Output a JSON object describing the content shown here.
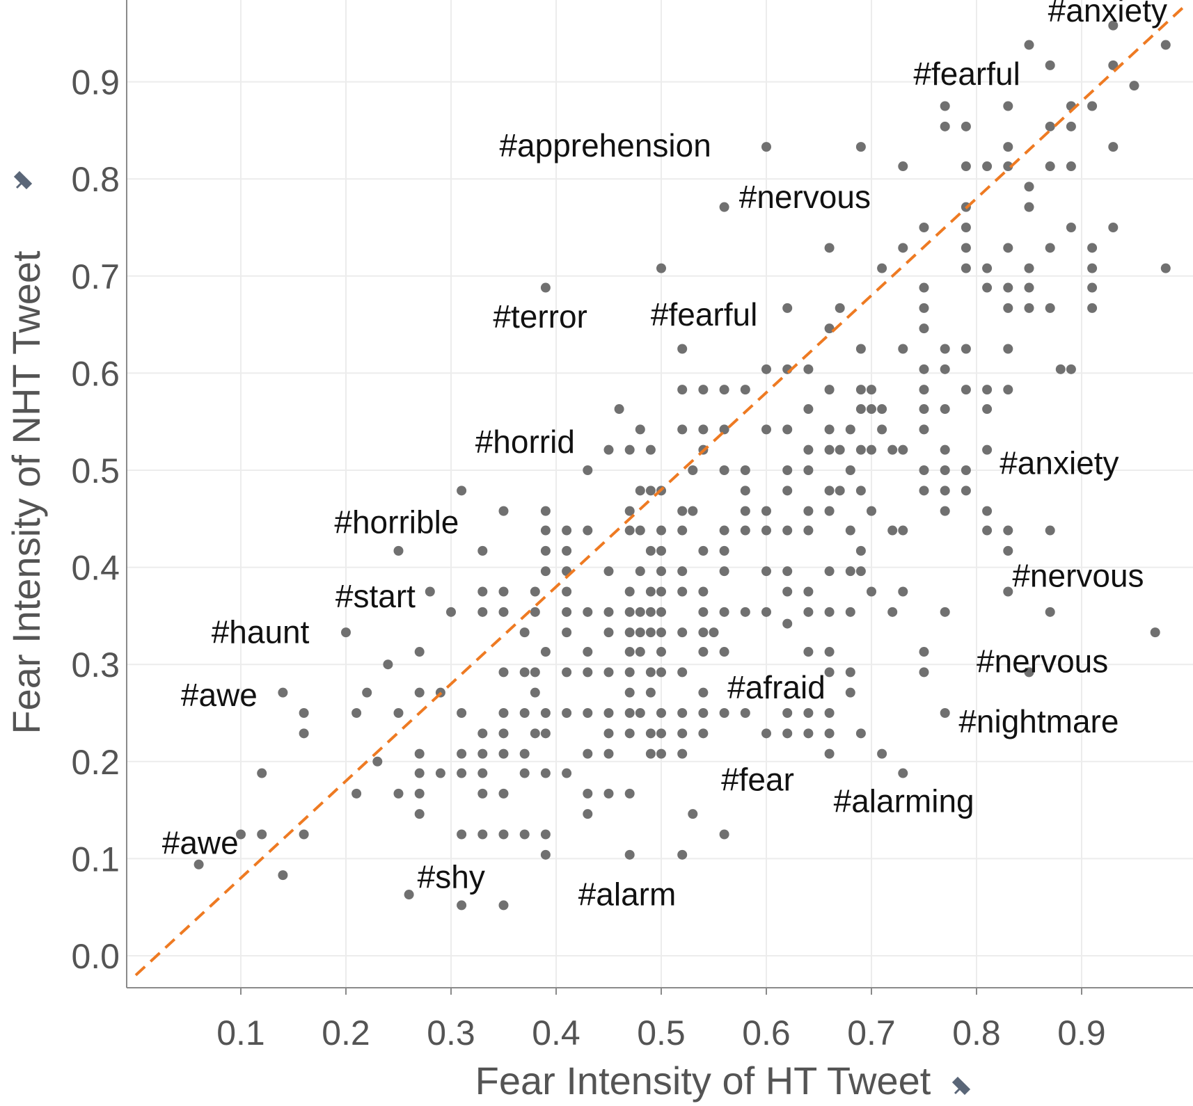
{
  "chart_data": {
    "type": "scatter",
    "xlabel": "Fear Intensity of HT Tweet",
    "ylabel": "Fear Intensity of NHT Tweet",
    "xlim": [
      0.0,
      1.0
    ],
    "ylim": [
      -0.02,
      1.0
    ],
    "x_ticks": [
      "0.1",
      "0.2",
      "0.3",
      "0.4",
      "0.5",
      "0.6",
      "0.7",
      "0.8",
      "0.9"
    ],
    "y_ticks": [
      "0.0",
      "0.1",
      "0.2",
      "0.3",
      "0.4",
      "0.5",
      "0.6",
      "0.7",
      "0.8",
      "0.9",
      "1.0"
    ],
    "grid": true,
    "reference_line": {
      "type": "diagonal",
      "x": [
        0.0,
        1.0
      ],
      "y": [
        -0.02,
        0.98
      ],
      "color": "#ee7a22",
      "style": "dashed"
    },
    "colors": {
      "point": "#707070",
      "diagonal": "#ee7a22",
      "grid": "#ececec",
      "axis": "#8a8a8a",
      "text": "#545454",
      "annotation": "#111111",
      "pin": "#5a6678"
    },
    "icons": {
      "axis_title_marker": "pin-icon"
    },
    "points": [
      [
        0.06,
        0.094
      ],
      [
        0.1,
        0.125
      ],
      [
        0.12,
        0.125
      ],
      [
        0.12,
        0.188
      ],
      [
        0.14,
        0.271
      ],
      [
        0.14,
        0.083
      ],
      [
        0.16,
        0.25
      ],
      [
        0.16,
        0.229
      ],
      [
        0.16,
        0.125
      ],
      [
        0.2,
        0.333
      ],
      [
        0.21,
        0.25
      ],
      [
        0.21,
        0.167
      ],
      [
        0.22,
        0.271
      ],
      [
        0.23,
        0.2
      ],
      [
        0.25,
        0.417
      ],
      [
        0.24,
        0.3
      ],
      [
        0.25,
        0.25
      ],
      [
        0.25,
        0.167
      ],
      [
        0.26,
        0.063
      ],
      [
        0.27,
        0.313
      ],
      [
        0.27,
        0.271
      ],
      [
        0.27,
        0.208
      ],
      [
        0.27,
        0.188
      ],
      [
        0.27,
        0.146
      ],
      [
        0.27,
        0.167
      ],
      [
        0.28,
        0.375
      ],
      [
        0.29,
        0.271
      ],
      [
        0.29,
        0.188
      ],
      [
        0.3,
        0.354
      ],
      [
        0.31,
        0.479
      ],
      [
        0.31,
        0.25
      ],
      [
        0.31,
        0.208
      ],
      [
        0.31,
        0.188
      ],
      [
        0.31,
        0.125
      ],
      [
        0.31,
        0.052
      ],
      [
        0.33,
        0.417
      ],
      [
        0.33,
        0.375
      ],
      [
        0.33,
        0.354
      ],
      [
        0.33,
        0.229
      ],
      [
        0.33,
        0.208
      ],
      [
        0.33,
        0.188
      ],
      [
        0.33,
        0.167
      ],
      [
        0.33,
        0.125
      ],
      [
        0.35,
        0.458
      ],
      [
        0.35,
        0.375
      ],
      [
        0.35,
        0.354
      ],
      [
        0.35,
        0.292
      ],
      [
        0.35,
        0.25
      ],
      [
        0.35,
        0.229
      ],
      [
        0.35,
        0.208
      ],
      [
        0.35,
        0.167
      ],
      [
        0.35,
        0.125
      ],
      [
        0.35,
        0.052
      ],
      [
        0.37,
        0.333
      ],
      [
        0.37,
        0.292
      ],
      [
        0.37,
        0.25
      ],
      [
        0.37,
        0.208
      ],
      [
        0.37,
        0.188
      ],
      [
        0.37,
        0.125
      ],
      [
        0.38,
        0.375
      ],
      [
        0.38,
        0.354
      ],
      [
        0.38,
        0.292
      ],
      [
        0.38,
        0.271
      ],
      [
        0.38,
        0.229
      ],
      [
        0.39,
        0.458
      ],
      [
        0.39,
        0.438
      ],
      [
        0.39,
        0.417
      ],
      [
        0.39,
        0.396
      ],
      [
        0.39,
        0.313
      ],
      [
        0.39,
        0.25
      ],
      [
        0.39,
        0.229
      ],
      [
        0.39,
        0.188
      ],
      [
        0.39,
        0.125
      ],
      [
        0.39,
        0.104
      ],
      [
        0.39,
        0.688
      ],
      [
        0.41,
        0.438
      ],
      [
        0.41,
        0.417
      ],
      [
        0.41,
        0.396
      ],
      [
        0.41,
        0.375
      ],
      [
        0.41,
        0.354
      ],
      [
        0.41,
        0.333
      ],
      [
        0.41,
        0.292
      ],
      [
        0.41,
        0.25
      ],
      [
        0.41,
        0.188
      ],
      [
        0.43,
        0.5
      ],
      [
        0.43,
        0.438
      ],
      [
        0.43,
        0.354
      ],
      [
        0.43,
        0.313
      ],
      [
        0.43,
        0.292
      ],
      [
        0.43,
        0.25
      ],
      [
        0.43,
        0.208
      ],
      [
        0.43,
        0.167
      ],
      [
        0.43,
        0.146
      ],
      [
        0.45,
        0.521
      ],
      [
        0.45,
        0.396
      ],
      [
        0.45,
        0.354
      ],
      [
        0.45,
        0.333
      ],
      [
        0.45,
        0.292
      ],
      [
        0.45,
        0.25
      ],
      [
        0.45,
        0.229
      ],
      [
        0.45,
        0.208
      ],
      [
        0.45,
        0.167
      ],
      [
        0.46,
        0.563
      ],
      [
        0.47,
        0.521
      ],
      [
        0.47,
        0.458
      ],
      [
        0.47,
        0.438
      ],
      [
        0.47,
        0.375
      ],
      [
        0.47,
        0.354
      ],
      [
        0.47,
        0.333
      ],
      [
        0.47,
        0.313
      ],
      [
        0.47,
        0.292
      ],
      [
        0.47,
        0.271
      ],
      [
        0.47,
        0.25
      ],
      [
        0.47,
        0.229
      ],
      [
        0.47,
        0.167
      ],
      [
        0.47,
        0.104
      ],
      [
        0.48,
        0.542
      ],
      [
        0.48,
        0.479
      ],
      [
        0.48,
        0.438
      ],
      [
        0.48,
        0.396
      ],
      [
        0.48,
        0.354
      ],
      [
        0.48,
        0.333
      ],
      [
        0.48,
        0.313
      ],
      [
        0.48,
        0.25
      ],
      [
        0.49,
        0.521
      ],
      [
        0.49,
        0.479
      ],
      [
        0.49,
        0.417
      ],
      [
        0.49,
        0.375
      ],
      [
        0.49,
        0.354
      ],
      [
        0.49,
        0.333
      ],
      [
        0.49,
        0.292
      ],
      [
        0.49,
        0.271
      ],
      [
        0.49,
        0.229
      ],
      [
        0.49,
        0.208
      ],
      [
        0.5,
        0.708
      ],
      [
        0.5,
        0.479
      ],
      [
        0.5,
        0.438
      ],
      [
        0.5,
        0.417
      ],
      [
        0.5,
        0.396
      ],
      [
        0.5,
        0.375
      ],
      [
        0.5,
        0.354
      ],
      [
        0.5,
        0.333
      ],
      [
        0.5,
        0.313
      ],
      [
        0.5,
        0.292
      ],
      [
        0.5,
        0.25
      ],
      [
        0.5,
        0.229
      ],
      [
        0.5,
        0.208
      ],
      [
        0.52,
        0.625
      ],
      [
        0.52,
        0.583
      ],
      [
        0.52,
        0.542
      ],
      [
        0.52,
        0.458
      ],
      [
        0.52,
        0.438
      ],
      [
        0.52,
        0.396
      ],
      [
        0.52,
        0.375
      ],
      [
        0.52,
        0.333
      ],
      [
        0.52,
        0.292
      ],
      [
        0.52,
        0.25
      ],
      [
        0.52,
        0.229
      ],
      [
        0.52,
        0.208
      ],
      [
        0.52,
        0.104
      ],
      [
        0.53,
        0.5
      ],
      [
        0.53,
        0.458
      ],
      [
        0.53,
        0.146
      ],
      [
        0.54,
        0.583
      ],
      [
        0.54,
        0.542
      ],
      [
        0.54,
        0.521
      ],
      [
        0.54,
        0.417
      ],
      [
        0.54,
        0.375
      ],
      [
        0.54,
        0.354
      ],
      [
        0.54,
        0.333
      ],
      [
        0.54,
        0.313
      ],
      [
        0.54,
        0.271
      ],
      [
        0.54,
        0.25
      ],
      [
        0.54,
        0.229
      ],
      [
        0.55,
        0.333
      ],
      [
        0.56,
        0.771
      ],
      [
        0.56,
        0.583
      ],
      [
        0.56,
        0.542
      ],
      [
        0.56,
        0.5
      ],
      [
        0.56,
        0.438
      ],
      [
        0.56,
        0.417
      ],
      [
        0.56,
        0.396
      ],
      [
        0.56,
        0.354
      ],
      [
        0.56,
        0.313
      ],
      [
        0.56,
        0.25
      ],
      [
        0.56,
        0.125
      ],
      [
        0.58,
        0.583
      ],
      [
        0.58,
        0.5
      ],
      [
        0.58,
        0.479
      ],
      [
        0.58,
        0.458
      ],
      [
        0.58,
        0.438
      ],
      [
        0.58,
        0.354
      ],
      [
        0.58,
        0.25
      ],
      [
        0.6,
        0.833
      ],
      [
        0.6,
        0.604
      ],
      [
        0.6,
        0.542
      ],
      [
        0.6,
        0.458
      ],
      [
        0.6,
        0.438
      ],
      [
        0.6,
        0.396
      ],
      [
        0.6,
        0.354
      ],
      [
        0.6,
        0.229
      ],
      [
        0.62,
        0.667
      ],
      [
        0.62,
        0.604
      ],
      [
        0.62,
        0.542
      ],
      [
        0.62,
        0.5
      ],
      [
        0.62,
        0.479
      ],
      [
        0.62,
        0.438
      ],
      [
        0.62,
        0.396
      ],
      [
        0.62,
        0.375
      ],
      [
        0.62,
        0.342
      ],
      [
        0.62,
        0.25
      ],
      [
        0.62,
        0.229
      ],
      [
        0.64,
        0.604
      ],
      [
        0.64,
        0.563
      ],
      [
        0.64,
        0.521
      ],
      [
        0.64,
        0.5
      ],
      [
        0.64,
        0.458
      ],
      [
        0.64,
        0.438
      ],
      [
        0.64,
        0.375
      ],
      [
        0.64,
        0.354
      ],
      [
        0.64,
        0.313
      ],
      [
        0.64,
        0.25
      ],
      [
        0.64,
        0.229
      ],
      [
        0.66,
        0.729
      ],
      [
        0.66,
        0.646
      ],
      [
        0.66,
        0.583
      ],
      [
        0.66,
        0.542
      ],
      [
        0.66,
        0.521
      ],
      [
        0.66,
        0.479
      ],
      [
        0.66,
        0.458
      ],
      [
        0.66,
        0.396
      ],
      [
        0.66,
        0.354
      ],
      [
        0.66,
        0.313
      ],
      [
        0.66,
        0.292
      ],
      [
        0.66,
        0.25
      ],
      [
        0.66,
        0.229
      ],
      [
        0.66,
        0.208
      ],
      [
        0.67,
        0.667
      ],
      [
        0.67,
        0.521
      ],
      [
        0.67,
        0.479
      ],
      [
        0.68,
        0.542
      ],
      [
        0.68,
        0.5
      ],
      [
        0.68,
        0.438
      ],
      [
        0.68,
        0.396
      ],
      [
        0.68,
        0.354
      ],
      [
        0.68,
        0.292
      ],
      [
        0.68,
        0.271
      ],
      [
        0.69,
        0.833
      ],
      [
        0.69,
        0.625
      ],
      [
        0.69,
        0.583
      ],
      [
        0.69,
        0.563
      ],
      [
        0.69,
        0.521
      ],
      [
        0.69,
        0.479
      ],
      [
        0.69,
        0.417
      ],
      [
        0.69,
        0.396
      ],
      [
        0.69,
        0.229
      ],
      [
        0.7,
        0.583
      ],
      [
        0.7,
        0.563
      ],
      [
        0.7,
        0.521
      ],
      [
        0.7,
        0.458
      ],
      [
        0.7,
        0.375
      ],
      [
        0.71,
        0.708
      ],
      [
        0.71,
        0.563
      ],
      [
        0.71,
        0.542
      ],
      [
        0.71,
        0.208
      ],
      [
        0.72,
        0.521
      ],
      [
        0.72,
        0.438
      ],
      [
        0.72,
        0.354
      ],
      [
        0.73,
        0.813
      ],
      [
        0.73,
        0.729
      ],
      [
        0.73,
        0.625
      ],
      [
        0.73,
        0.521
      ],
      [
        0.73,
        0.438
      ],
      [
        0.73,
        0.375
      ],
      [
        0.73,
        0.188
      ],
      [
        0.75,
        0.75
      ],
      [
        0.75,
        0.688
      ],
      [
        0.75,
        0.667
      ],
      [
        0.75,
        0.646
      ],
      [
        0.75,
        0.604
      ],
      [
        0.75,
        0.583
      ],
      [
        0.75,
        0.563
      ],
      [
        0.75,
        0.542
      ],
      [
        0.75,
        0.5
      ],
      [
        0.75,
        0.479
      ],
      [
        0.75,
        0.313
      ],
      [
        0.75,
        0.292
      ],
      [
        0.77,
        0.875
      ],
      [
        0.77,
        0.854
      ],
      [
        0.77,
        0.625
      ],
      [
        0.77,
        0.604
      ],
      [
        0.77,
        0.563
      ],
      [
        0.77,
        0.521
      ],
      [
        0.77,
        0.5
      ],
      [
        0.77,
        0.479
      ],
      [
        0.77,
        0.458
      ],
      [
        0.77,
        0.354
      ],
      [
        0.77,
        0.25
      ],
      [
        0.79,
        0.854
      ],
      [
        0.79,
        0.813
      ],
      [
        0.79,
        0.771
      ],
      [
        0.79,
        0.75
      ],
      [
        0.79,
        0.729
      ],
      [
        0.79,
        0.708
      ],
      [
        0.79,
        0.625
      ],
      [
        0.79,
        0.583
      ],
      [
        0.79,
        0.5
      ],
      [
        0.79,
        0.479
      ],
      [
        0.81,
        0.813
      ],
      [
        0.81,
        0.708
      ],
      [
        0.81,
        0.688
      ],
      [
        0.81,
        0.583
      ],
      [
        0.81,
        0.563
      ],
      [
        0.81,
        0.521
      ],
      [
        0.81,
        0.458
      ],
      [
        0.81,
        0.438
      ],
      [
        0.83,
        0.875
      ],
      [
        0.83,
        0.833
      ],
      [
        0.83,
        0.813
      ],
      [
        0.83,
        0.729
      ],
      [
        0.83,
        0.688
      ],
      [
        0.83,
        0.667
      ],
      [
        0.83,
        0.625
      ],
      [
        0.83,
        0.583
      ],
      [
        0.83,
        0.438
      ],
      [
        0.83,
        0.417
      ],
      [
        0.83,
        0.375
      ],
      [
        0.85,
        0.938
      ],
      [
        0.85,
        0.792
      ],
      [
        0.85,
        0.771
      ],
      [
        0.85,
        0.708
      ],
      [
        0.85,
        0.688
      ],
      [
        0.85,
        0.667
      ],
      [
        0.85,
        0.292
      ],
      [
        0.87,
        0.917
      ],
      [
        0.87,
        0.854
      ],
      [
        0.87,
        0.813
      ],
      [
        0.87,
        0.729
      ],
      [
        0.87,
        0.667
      ],
      [
        0.87,
        0.438
      ],
      [
        0.87,
        0.354
      ],
      [
        0.88,
        0.604
      ],
      [
        0.89,
        0.875
      ],
      [
        0.89,
        0.854
      ],
      [
        0.89,
        0.813
      ],
      [
        0.89,
        0.75
      ],
      [
        0.89,
        0.604
      ],
      [
        0.91,
        0.875
      ],
      [
        0.91,
        0.729
      ],
      [
        0.91,
        0.708
      ],
      [
        0.91,
        0.688
      ],
      [
        0.91,
        0.667
      ],
      [
        0.93,
        0.958
      ],
      [
        0.93,
        0.917
      ],
      [
        0.93,
        0.833
      ],
      [
        0.93,
        0.75
      ],
      [
        0.95,
        0.896
      ],
      [
        0.97,
        0.333
      ],
      [
        0.98,
        0.938
      ],
      [
        0.98,
        0.708
      ]
    ],
    "annotations": [
      {
        "text": "#anxiety",
        "x": 0.868,
        "y": 0.962
      },
      {
        "text": "#fearful",
        "x": 0.74,
        "y": 0.897
      },
      {
        "text": "#apprehension",
        "x": 0.346,
        "y": 0.823
      },
      {
        "text": "#nervous",
        "x": 0.574,
        "y": 0.77
      },
      {
        "text": "#terror",
        "x": 0.34,
        "y": 0.647
      },
      {
        "text": "#fearful",
        "x": 0.49,
        "y": 0.649
      },
      {
        "text": "#horrid",
        "x": 0.323,
        "y": 0.518
      },
      {
        "text": "#anxiety",
        "x": 0.822,
        "y": 0.496
      },
      {
        "text": "#horrible",
        "x": 0.189,
        "y": 0.435
      },
      {
        "text": "#nervous",
        "x": 0.834,
        "y": 0.38
      },
      {
        "text": "#start",
        "x": 0.19,
        "y": 0.359
      },
      {
        "text": "#haunt",
        "x": 0.072,
        "y": 0.322
      },
      {
        "text": "#nervous",
        "x": 0.8,
        "y": 0.292
      },
      {
        "text": "#awe",
        "x": 0.043,
        "y": 0.257
      },
      {
        "text": "#afraid",
        "x": 0.563,
        "y": 0.265
      },
      {
        "text": "#nightmare",
        "x": 0.783,
        "y": 0.23
      },
      {
        "text": "#fear",
        "x": 0.557,
        "y": 0.17
      },
      {
        "text": "#alarming",
        "x": 0.664,
        "y": 0.148
      },
      {
        "text": "#awe",
        "x": 0.025,
        "y": 0.105
      },
      {
        "text": "#shy",
        "x": 0.268,
        "y": 0.07
      },
      {
        "text": "#alarm",
        "x": 0.421,
        "y": 0.052
      }
    ]
  }
}
